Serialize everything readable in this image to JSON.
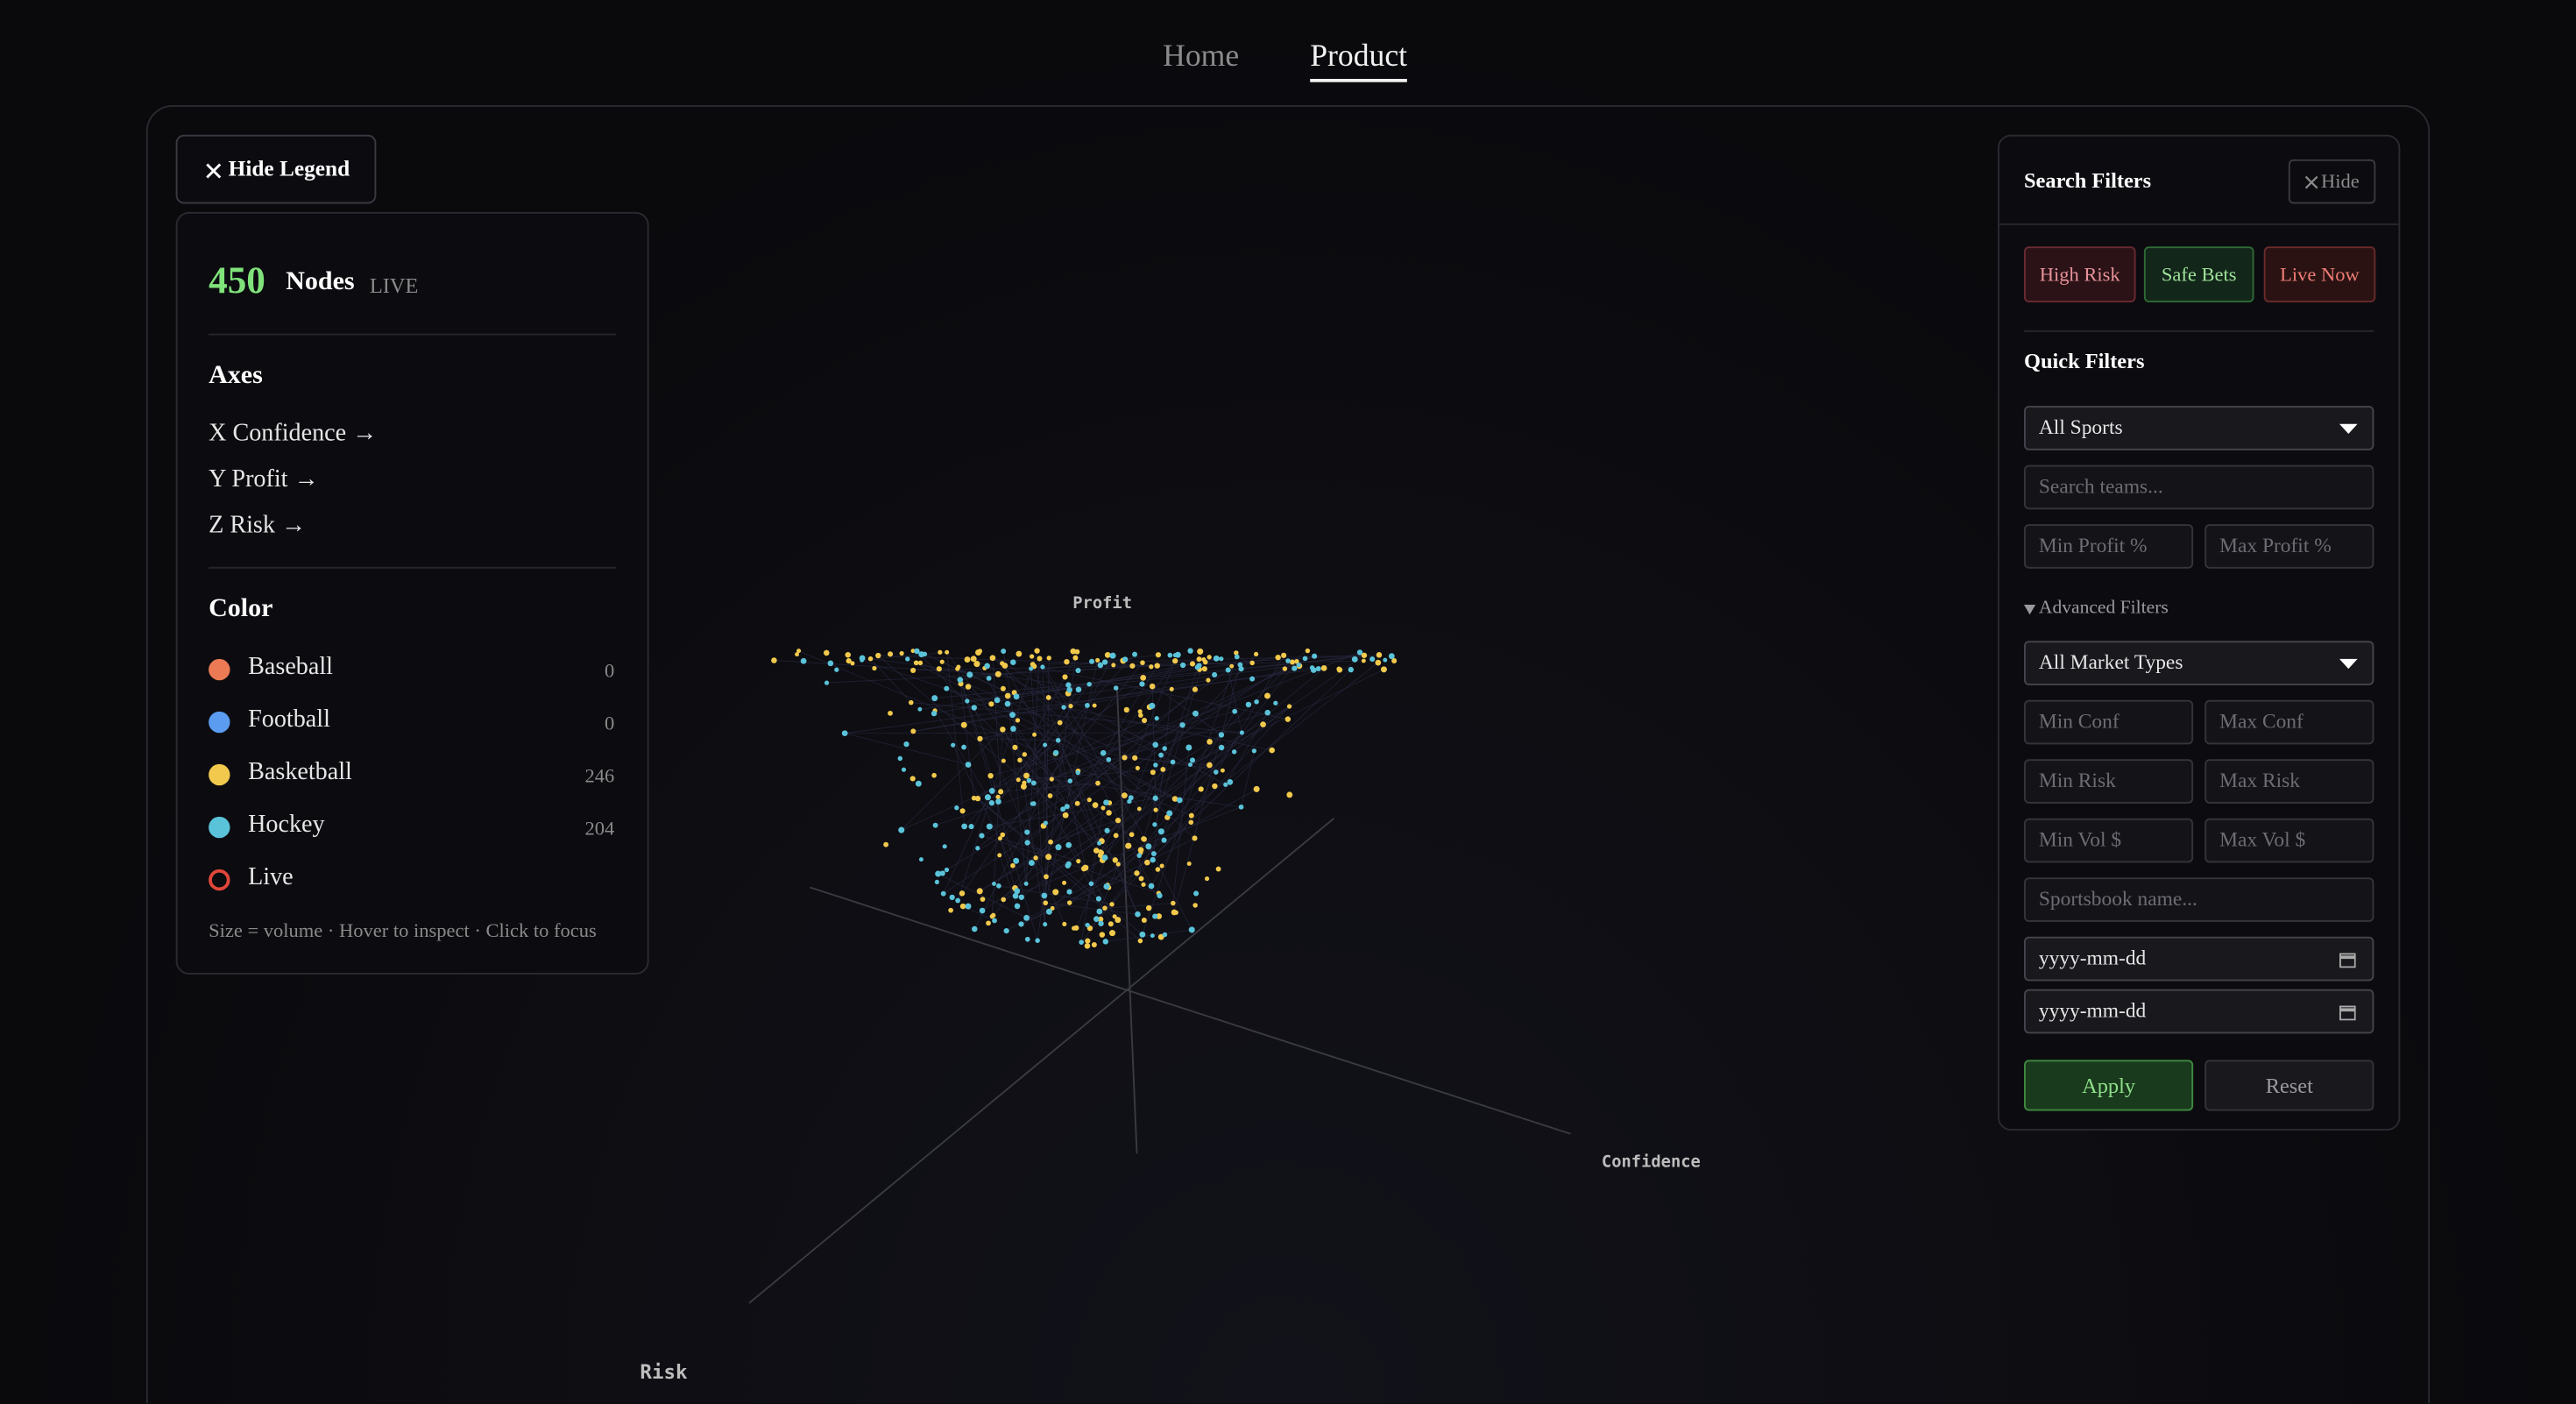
{
  "nav": {
    "items": [
      "Home",
      "Product"
    ],
    "active": 1
  },
  "legend": {
    "toggle": "Hide Legend",
    "count": 450,
    "count_label": "Nodes",
    "status": "LIVE",
    "axes_title": "Axes",
    "axes": [
      "X Confidence →",
      "Y Profit →",
      "Z Risk →"
    ],
    "color_title": "Color",
    "items": [
      {
        "name": "Baseball",
        "color": "#ec7a55",
        "count": 0
      },
      {
        "name": "Football",
        "color": "#5b9cf0",
        "count": 0
      },
      {
        "name": "Basketball",
        "color": "#f2c94c",
        "count": 246
      },
      {
        "name": "Hockey",
        "color": "#5bc3d9",
        "count": 204
      },
      {
        "name": "Live",
        "color": "#e2473a",
        "ring": true
      }
    ],
    "note": "Size = volume · Hover to inspect · Click to focus"
  },
  "plot": {
    "axis_labels": {
      "y": "Profit",
      "x": "Confidence",
      "z": "Risk"
    }
  },
  "filters": {
    "title": "Search Filters",
    "hide": "Hide",
    "chips": [
      {
        "label": "High Risk",
        "color": "#e8939a",
        "border": "#6b2a32",
        "bg": "#2a1216"
      },
      {
        "label": "Safe Bets",
        "color": "#9fe39a",
        "border": "#2f6b34",
        "bg": "#13261a"
      },
      {
        "label": "Live Now",
        "color": "#ee7d75",
        "border": "#6b2a2a",
        "bg": "#2a1212"
      }
    ],
    "quick_title": "Quick Filters",
    "sport": "All Sports",
    "team": "Search teams...",
    "min_profit": "Min Profit %",
    "max_profit": "Max Profit %",
    "advanced_title": "Advanced Filters",
    "market": "All Market Types",
    "min_conf": "Min Conf",
    "max_conf": "Max Conf",
    "min_risk": "Min Risk",
    "max_risk": "Max Risk",
    "min_vol": "Min Vol $",
    "max_vol": "Max Vol $",
    "sportsbook": "Sportsbook name...",
    "date_from": "yyyy-mm-dd",
    "date_to": "yyyy-mm-dd",
    "apply": "Apply",
    "reset": "Reset"
  }
}
